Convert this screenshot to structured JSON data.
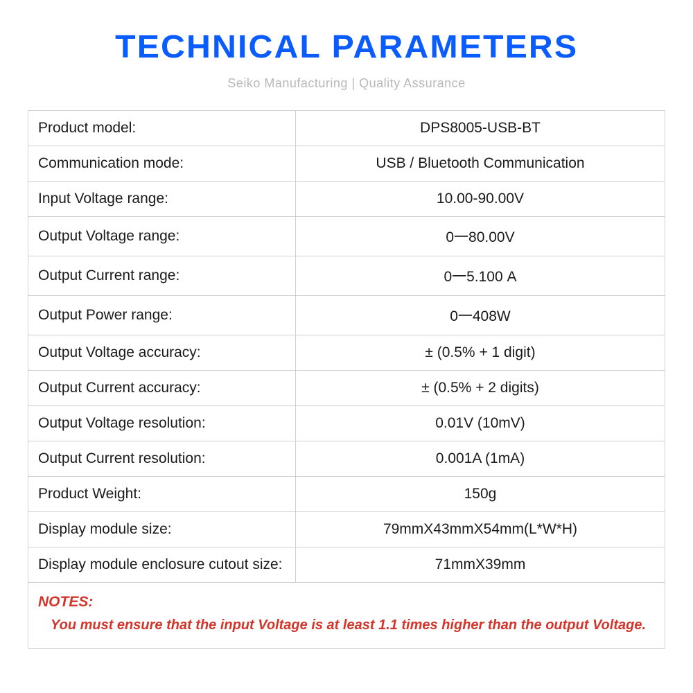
{
  "header": {
    "title": "TECHNICAL PARAMETERS",
    "subtitle": "Seiko Manufacturing | Quality Assurance"
  },
  "table": {
    "rows": [
      {
        "label": "Product model:",
        "value": "DPS8005-USB-BT"
      },
      {
        "label": "Communication mode:",
        "value": "USB / Bluetooth Communication"
      },
      {
        "label": "Input Voltage range:",
        "value": "10.00-90.00V"
      },
      {
        "label": "Output Voltage range:",
        "value": "0一80.00V"
      },
      {
        "label": "Output Current range:",
        "value": "0一5.100 A"
      },
      {
        "label": "Output Power range:",
        "value": "0一408W"
      },
      {
        "label": "Output Voltage accuracy:",
        "value": "± (0.5% + 1 digit)"
      },
      {
        "label": "Output Current accuracy:",
        "value": "± (0.5% + 2 digits)"
      },
      {
        "label": "Output Voltage resolution:",
        "value": "0.01V (10mV)"
      },
      {
        "label": "Output Current resolution:",
        "value": "0.001A (1mA)"
      },
      {
        "label": "Product Weight:",
        "value": "150g"
      },
      {
        "label": "Display module size:",
        "value": "79mmX43mmX54mm(L*W*H)"
      },
      {
        "label": "Display module enclosure cutout size:",
        "value": "71mmX39mm"
      }
    ]
  },
  "notes": {
    "label": "NOTES:",
    "text": "You must ensure that the input Voltage is at least 1.1 times higher than the output Voltage."
  },
  "colors": {
    "title": "#0a5cff",
    "subtitle": "#b8b8b8",
    "border": "#d0d0d0",
    "text": "#1a1a1a",
    "notes": "#d4342a",
    "background": "#ffffff"
  }
}
